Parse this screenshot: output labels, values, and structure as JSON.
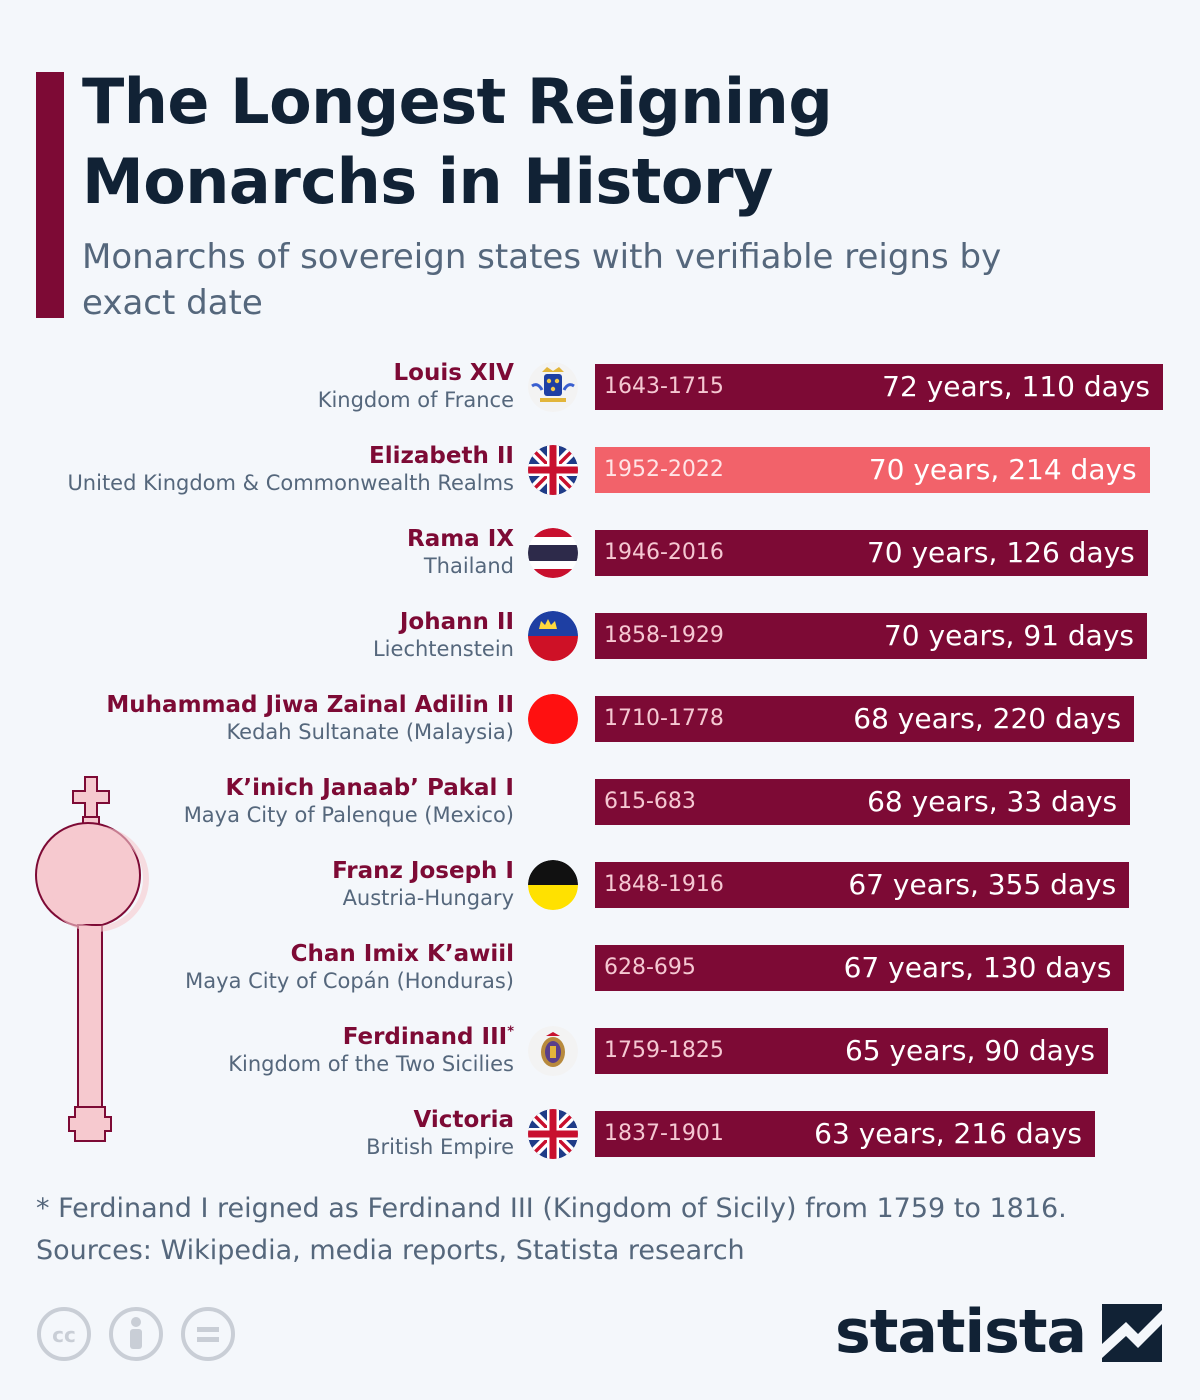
{
  "header": {
    "title": "The Longest Reigning Monarchs in History",
    "subtitle": "Monarchs of sovereign states with verifiable reigns by exact date"
  },
  "chart_data": {
    "type": "bar",
    "orientation": "horizontal",
    "value_unit": "years",
    "highlight_color": "#f2626a",
    "bar_color": "#7d0a35",
    "rows": [
      {
        "name": "Louis XIV",
        "country": "Kingdom of France",
        "reign": "1643-1715",
        "duration": "72 years, 110 days",
        "value": 72.3,
        "flag": "france-royal-arms-flag",
        "highlight": false
      },
      {
        "name": "Elizabeth II",
        "country": "United Kingdom & Commonwealth Realms",
        "reign": "1952-2022",
        "duration": "70 years, 214 days",
        "value": 70.59,
        "flag": "union-jack-flag",
        "highlight": true
      },
      {
        "name": "Rama IX",
        "country": "Thailand",
        "reign": "1946-2016",
        "duration": "70 years, 126 days",
        "value": 70.35,
        "flag": "thailand-flag",
        "highlight": false
      },
      {
        "name": "Johann II",
        "country": "Liechtenstein",
        "reign": "1858-1929",
        "duration": "70 years, 91 days",
        "value": 70.25,
        "flag": "liechtenstein-flag",
        "highlight": false
      },
      {
        "name": "Muhammad Jiwa Zainal Adilin II",
        "country": "Kedah Sultanate (Malaysia)",
        "reign": "1710-1778",
        "duration": "68 years, 220 days",
        "value": 68.6,
        "flag": "kedah-red-flag",
        "highlight": false
      },
      {
        "name": "K’inich Janaab’ Pakal I",
        "country": "Maya City of Palenque (Mexico)",
        "reign": "615-683",
        "duration": "68 years, 33 days",
        "value": 68.09,
        "flag": "",
        "highlight": false
      },
      {
        "name": "Franz Joseph I",
        "country": "Austria-Hungary",
        "reign": "1848-1916",
        "duration": "67 years, 355 days",
        "value": 67.97,
        "flag": "austria-hungary-flag",
        "highlight": false
      },
      {
        "name": "Chan Imix K’awiil",
        "country": "Maya City of Copán (Honduras)",
        "reign": "628-695",
        "duration": "67 years, 130 days",
        "value": 67.36,
        "flag": "",
        "highlight": false
      },
      {
        "name": "Ferdinand III",
        "name_mark": "*",
        "country": "Kingdom of the Two Sicilies",
        "reign": "1759-1825",
        "duration": "65 years, 90 days",
        "value": 65.25,
        "flag": "two-sicilies-flag",
        "highlight": false
      },
      {
        "name": "Victoria",
        "country": "British Empire",
        "reign": "1837-1901",
        "duration": "63 years, 216 days",
        "value": 63.59,
        "flag": "union-jack-flag",
        "highlight": false
      }
    ]
  },
  "footer": {
    "footnote": "* Ferdinand I reigned as Ferdinand III (Kingdom of Sicily) from 1759 to 1816.",
    "sources": "Sources: Wikipedia, media reports, Statista research",
    "brand": "statista",
    "license_icons": [
      "cc-icon",
      "by-icon",
      "nd-icon"
    ]
  }
}
